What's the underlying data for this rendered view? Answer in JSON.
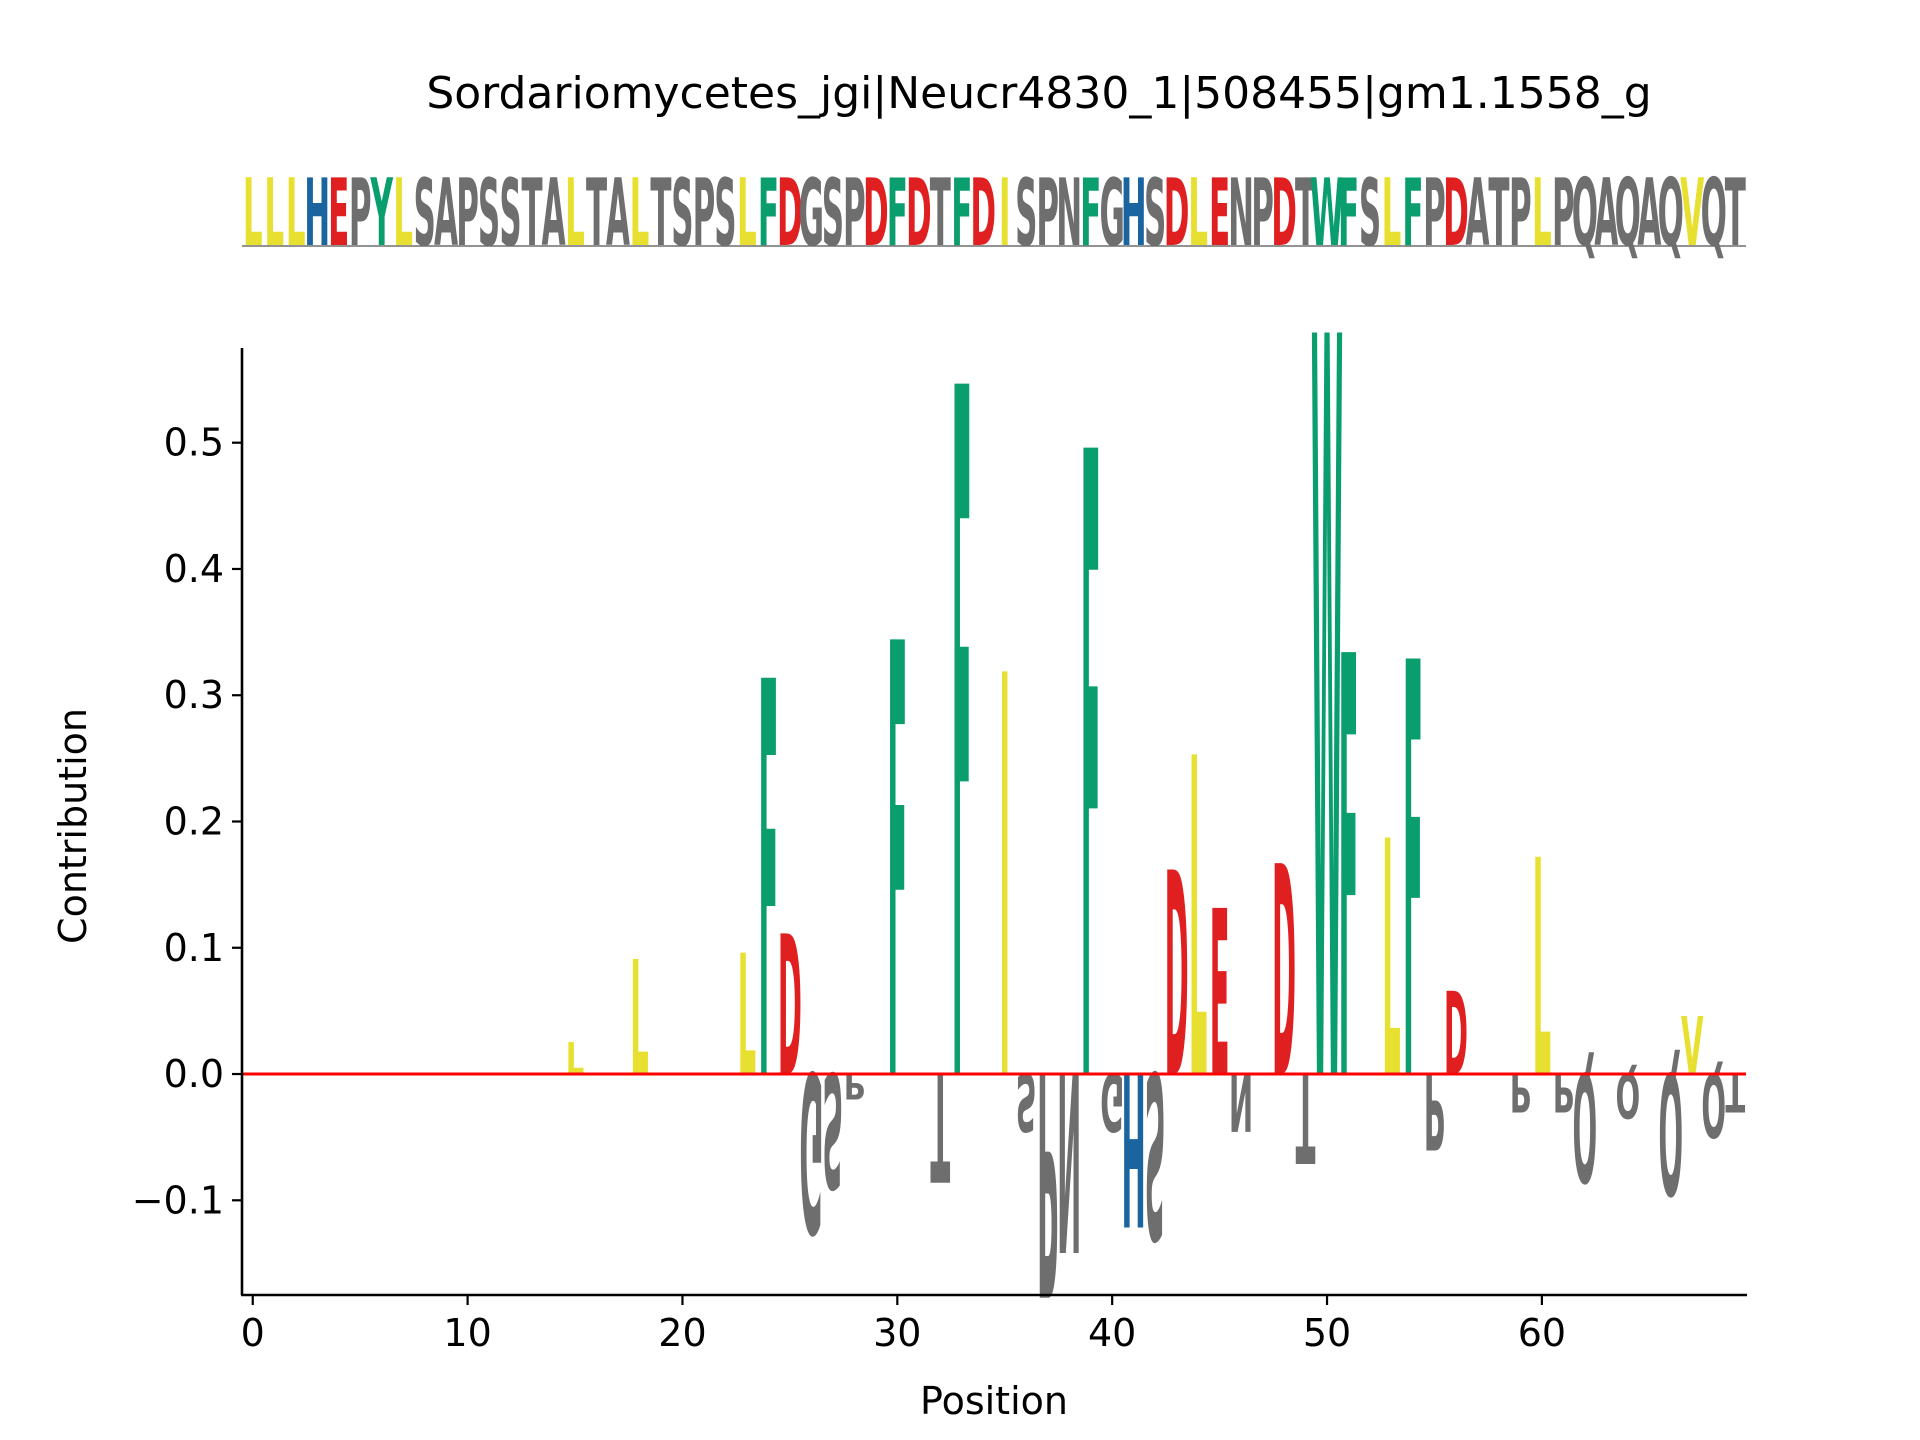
{
  "chart_data": {
    "type": "sequence-logo",
    "title": "Sordariomycetes_jgi|Neucr4830_1|508455|gm1.1558_g",
    "xlabel": "Position",
    "ylabel": "Contribution",
    "xlim": [
      -0.5,
      69.5
    ],
    "ylim": [
      -0.175,
      0.575
    ],
    "xticks": [
      0,
      10,
      20,
      30,
      40,
      50,
      60
    ],
    "yticks": [
      -0.1,
      0.0,
      0.1,
      0.2,
      0.3,
      0.4,
      0.5
    ],
    "ytick_labels": [
      "−0.1",
      "0.0",
      "0.1",
      "0.2",
      "0.3",
      "0.4",
      "0.5"
    ],
    "baseline": 0.0,
    "sequence": "LLLHEPYLSAPSSTALTALTSPSLFDGSPDFDTFDISPNFGHSDLENPDTWFSLFPDATPLPQAQAQVQT",
    "colors": {
      "L": "#e8e030",
      "I": "#e8e030",
      "V": "#e8e030",
      "F": "#0a9e6e",
      "W": "#0a9e6e",
      "Y": "#0a9e6e",
      "D": "#e02020",
      "E": "#e02020",
      "H": "#1a64a0",
      "other": "#6e6e6e",
      "baseline": "#ff0000"
    },
    "contributions": [
      {
        "pos": 15,
        "aa": "L",
        "value": 0.025
      },
      {
        "pos": 18,
        "aa": "L",
        "value": 0.09
      },
      {
        "pos": 23,
        "aa": "L",
        "value": 0.095
      },
      {
        "pos": 24,
        "aa": "F",
        "value": 0.31
      },
      {
        "pos": 25,
        "aa": "D",
        "value": 0.11
      },
      {
        "pos": 26,
        "aa": "G",
        "value": -0.125
      },
      {
        "pos": 27,
        "aa": "S",
        "value": -0.09
      },
      {
        "pos": 28,
        "aa": "P",
        "value": -0.02
      },
      {
        "pos": 30,
        "aa": "F",
        "value": 0.34
      },
      {
        "pos": 32,
        "aa": "T",
        "value": -0.085
      },
      {
        "pos": 33,
        "aa": "F",
        "value": 0.54
      },
      {
        "pos": 35,
        "aa": "I",
        "value": 0.315
      },
      {
        "pos": 36,
        "aa": "S",
        "value": -0.045
      },
      {
        "pos": 37,
        "aa": "P",
        "value": -0.175
      },
      {
        "pos": 38,
        "aa": "N",
        "value": -0.14
      },
      {
        "pos": 39,
        "aa": "F",
        "value": 0.49
      },
      {
        "pos": 40,
        "aa": "G",
        "value": -0.045
      },
      {
        "pos": 41,
        "aa": "H",
        "value": -0.12
      },
      {
        "pos": 42,
        "aa": "S",
        "value": -0.13
      },
      {
        "pos": 43,
        "aa": "D",
        "value": 0.16
      },
      {
        "pos": 44,
        "aa": "L",
        "value": 0.25
      },
      {
        "pos": 45,
        "aa": "E",
        "value": 0.13
      },
      {
        "pos": 46,
        "aa": "N",
        "value": -0.045
      },
      {
        "pos": 48,
        "aa": "D",
        "value": 0.165
      },
      {
        "pos": 49,
        "aa": "T",
        "value": -0.07
      },
      {
        "pos": 50,
        "aa": "W",
        "value": 0.58
      },
      {
        "pos": 51,
        "aa": "F",
        "value": 0.33
      },
      {
        "pos": 53,
        "aa": "L",
        "value": 0.185
      },
      {
        "pos": 54,
        "aa": "F",
        "value": 0.325
      },
      {
        "pos": 55,
        "aa": "P",
        "value": -0.06
      },
      {
        "pos": 56,
        "aa": "D",
        "value": 0.065
      },
      {
        "pos": 59,
        "aa": "P",
        "value": -0.03
      },
      {
        "pos": 60,
        "aa": "L",
        "value": 0.17
      },
      {
        "pos": 61,
        "aa": "P",
        "value": -0.03
      },
      {
        "pos": 62,
        "aa": "Q",
        "value": -0.085
      },
      {
        "pos": 64,
        "aa": "Q",
        "value": -0.035
      },
      {
        "pos": 66,
        "aa": "Q",
        "value": -0.095
      },
      {
        "pos": 67,
        "aa": "V",
        "value": 0.045
      },
      {
        "pos": 68,
        "aa": "Q",
        "value": -0.05
      },
      {
        "pos": 69,
        "aa": "T",
        "value": -0.03
      }
    ]
  }
}
